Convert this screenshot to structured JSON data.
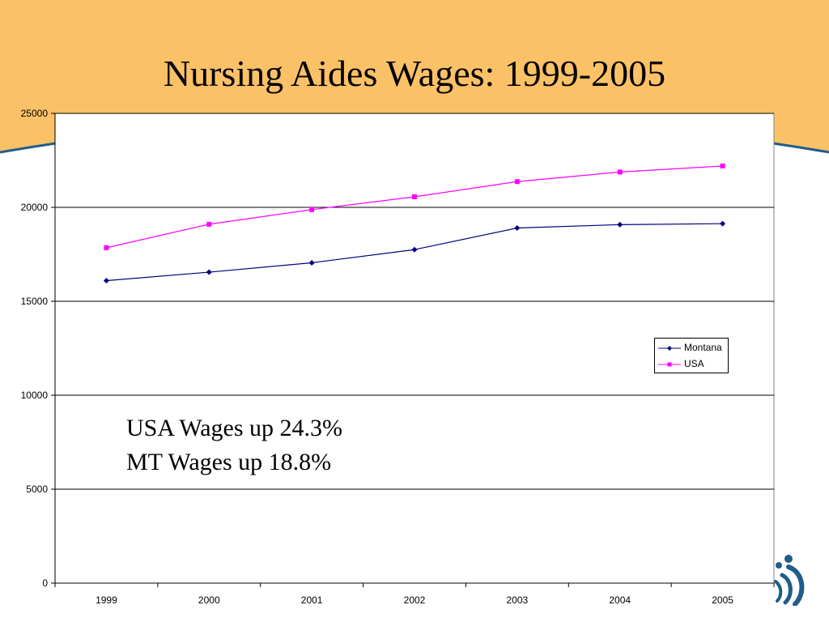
{
  "slide": {
    "title": "Nursing Aides Wages: 1999-2005",
    "annotations": [
      "USA Wages up 24.3%",
      "MT Wages up 18.8%"
    ],
    "colors": {
      "header_band": "#FBC166",
      "arc": "#1F5C8A",
      "logo": "#1F5C8A"
    },
    "logo_icon": "person-swirl-logo"
  },
  "chart_data": {
    "type": "line",
    "categories": [
      "1999",
      "2000",
      "2001",
      "2002",
      "2003",
      "2004",
      "2005"
    ],
    "series": [
      {
        "name": "Montana",
        "values": [
          16100,
          16550,
          17050,
          17750,
          18900,
          19080,
          19130
        ],
        "color": "#000080",
        "marker": "diamond"
      },
      {
        "name": "USA",
        "values": [
          17850,
          19100,
          19880,
          20560,
          21370,
          21880,
          22200
        ],
        "color": "#FF00FF",
        "marker": "square"
      }
    ],
    "ylim": [
      0,
      25000
    ],
    "yticks": [
      "0",
      "5000",
      "10000",
      "15000",
      "20000",
      "25000"
    ],
    "grid": true,
    "legend": "right",
    "xlabel": "",
    "ylabel": ""
  }
}
